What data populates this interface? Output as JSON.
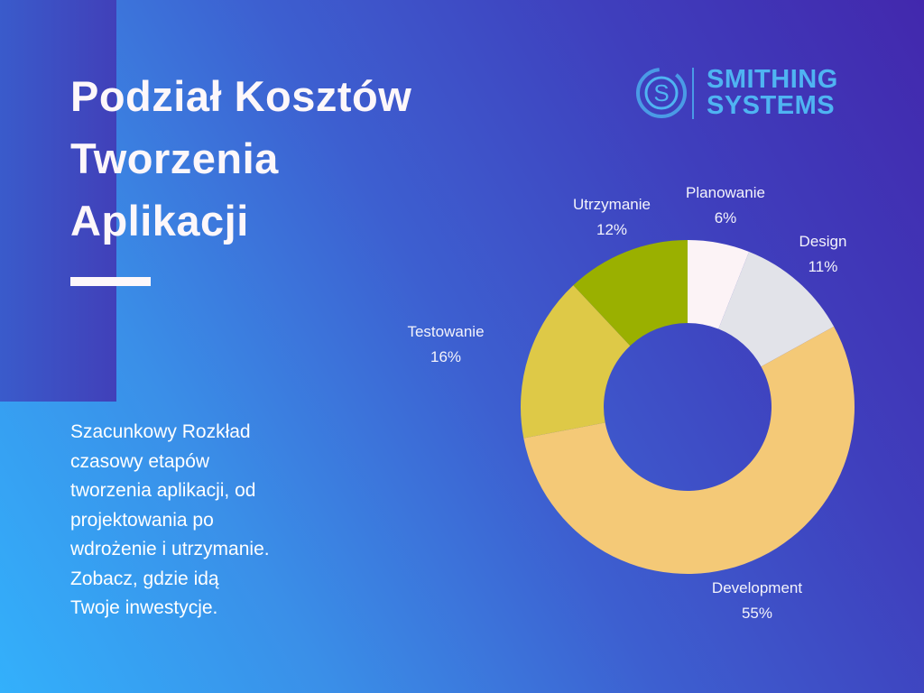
{
  "title_lines": [
    "Podział Kosztów",
    "Tworzenia",
    "Aplikacji"
  ],
  "description_lines": [
    "Szacunkowy Rozkład",
    "czasowy etapów",
    "tworzenia aplikacji, od",
    "projektowania po",
    "wdrożenie i utrzymanie.",
    "Zobacz, gdzie idą",
    "Twoje inwestycje."
  ],
  "logo": {
    "line1": "SMITHING",
    "line2": "SYSTEMS",
    "color": "#4fb4f2"
  },
  "chart_data": {
    "type": "pie",
    "variant": "donut",
    "start": "top",
    "direction": "clockwise",
    "legend": "none",
    "slices": [
      {
        "label": "Planowanie",
        "value": 6,
        "value_label": "6%",
        "color": "#fcf3f6"
      },
      {
        "label": "Design",
        "value": 11,
        "value_label": "11%",
        "color": "#e2e3e9"
      },
      {
        "label": "Development",
        "value": 55,
        "value_label": "55%",
        "color": "#f4c977"
      },
      {
        "label": "Testowanie",
        "value": 16,
        "value_label": "16%",
        "color": "#dec947"
      },
      {
        "label": "Utrzymanie",
        "value": 12,
        "value_label": "12%",
        "color": "#9ab000"
      }
    ]
  }
}
